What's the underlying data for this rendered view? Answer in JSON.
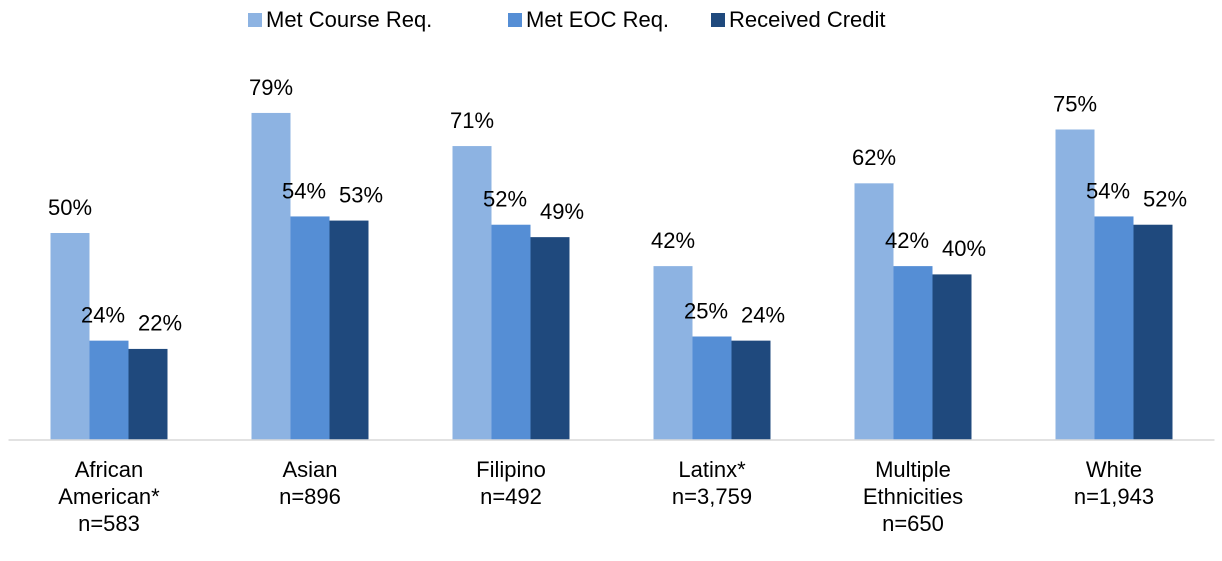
{
  "chart_data": {
    "type": "bar",
    "categories": [
      "African American*",
      "Asian",
      "Filipino",
      "Latinx*",
      "Multiple Ethnicities",
      "White"
    ],
    "sample_sizes": [
      "n=583",
      "n=896",
      "n=492",
      "n=3,759",
      "n=650",
      "n=1,943"
    ],
    "series": [
      {
        "name": "Met Course Req.",
        "color": "#8db3e2",
        "values": [
          50,
          79,
          71,
          42,
          62,
          75
        ],
        "value_labels": [
          "50%",
          "79%",
          "71%",
          "42%",
          "62%",
          "75%"
        ]
      },
      {
        "name": "Met EOC Req.",
        "color": "#558ed5",
        "values": [
          24,
          54,
          52,
          25,
          42,
          54
        ],
        "value_labels": [
          "24%",
          "54%",
          "52%",
          "25%",
          "42%",
          "54%"
        ]
      },
      {
        "name": "Received Credit",
        "color": "#1f497d",
        "values": [
          22,
          53,
          49,
          24,
          40,
          52
        ],
        "value_labels": [
          "22%",
          "53%",
          "49%",
          "24%",
          "40%",
          "52%"
        ]
      }
    ],
    "ylim": [
      0,
      100
    ],
    "legend": "top"
  }
}
